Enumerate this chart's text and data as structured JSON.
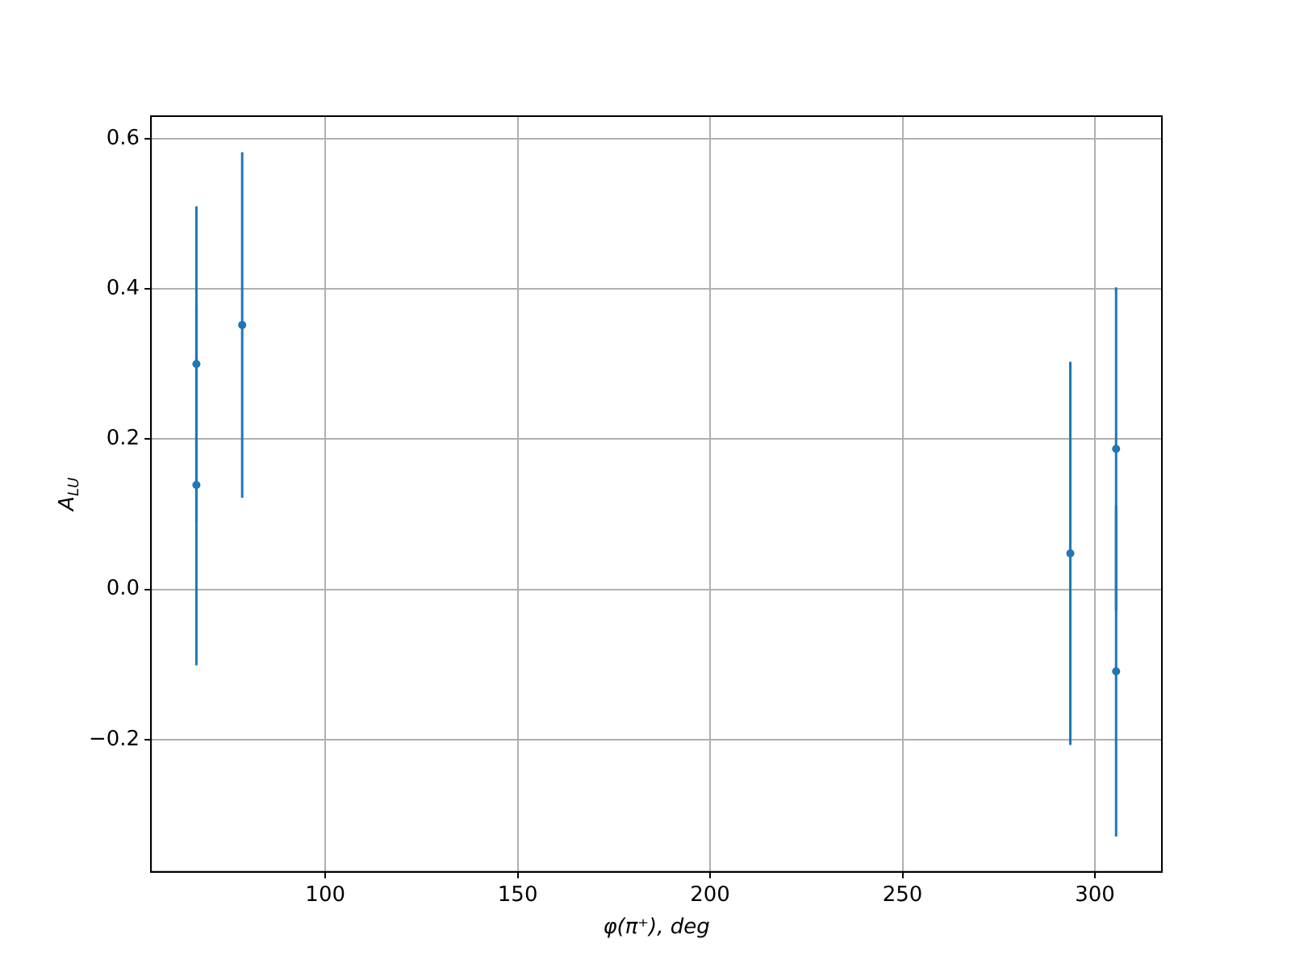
{
  "chart_data": {
    "type": "scatter",
    "xlabel": "φ(π⁺), deg",
    "ylabel": "A$_{LU}$",
    "x": [
      66.5,
      66.5,
      78.4,
      293.6,
      305.5,
      305.5
    ],
    "series": [
      {
        "color": "#1f77b4",
        "values": [
          0.3,
          0.139,
          0.352,
          0.048,
          0.187,
          -0.109
        ],
        "errors": [
          0.21,
          0.24,
          0.23,
          0.255,
          0.215,
          0.22
        ]
      }
    ],
    "xlim": [
      54.7,
      317.4
    ],
    "ylim": [
      -0.376,
      0.63
    ],
    "xticks": [
      100,
      150,
      200,
      250,
      300
    ],
    "yticks": [
      {
        "value": -0.2,
        "label": "−0.2"
      },
      {
        "value": 0.0,
        "label": "0.0"
      },
      {
        "value": 0.2,
        "label": "0.2"
      },
      {
        "value": 0.4,
        "label": "0.4"
      },
      {
        "value": 0.6,
        "label": "0.6"
      }
    ],
    "grid": true,
    "marker": "circle"
  }
}
